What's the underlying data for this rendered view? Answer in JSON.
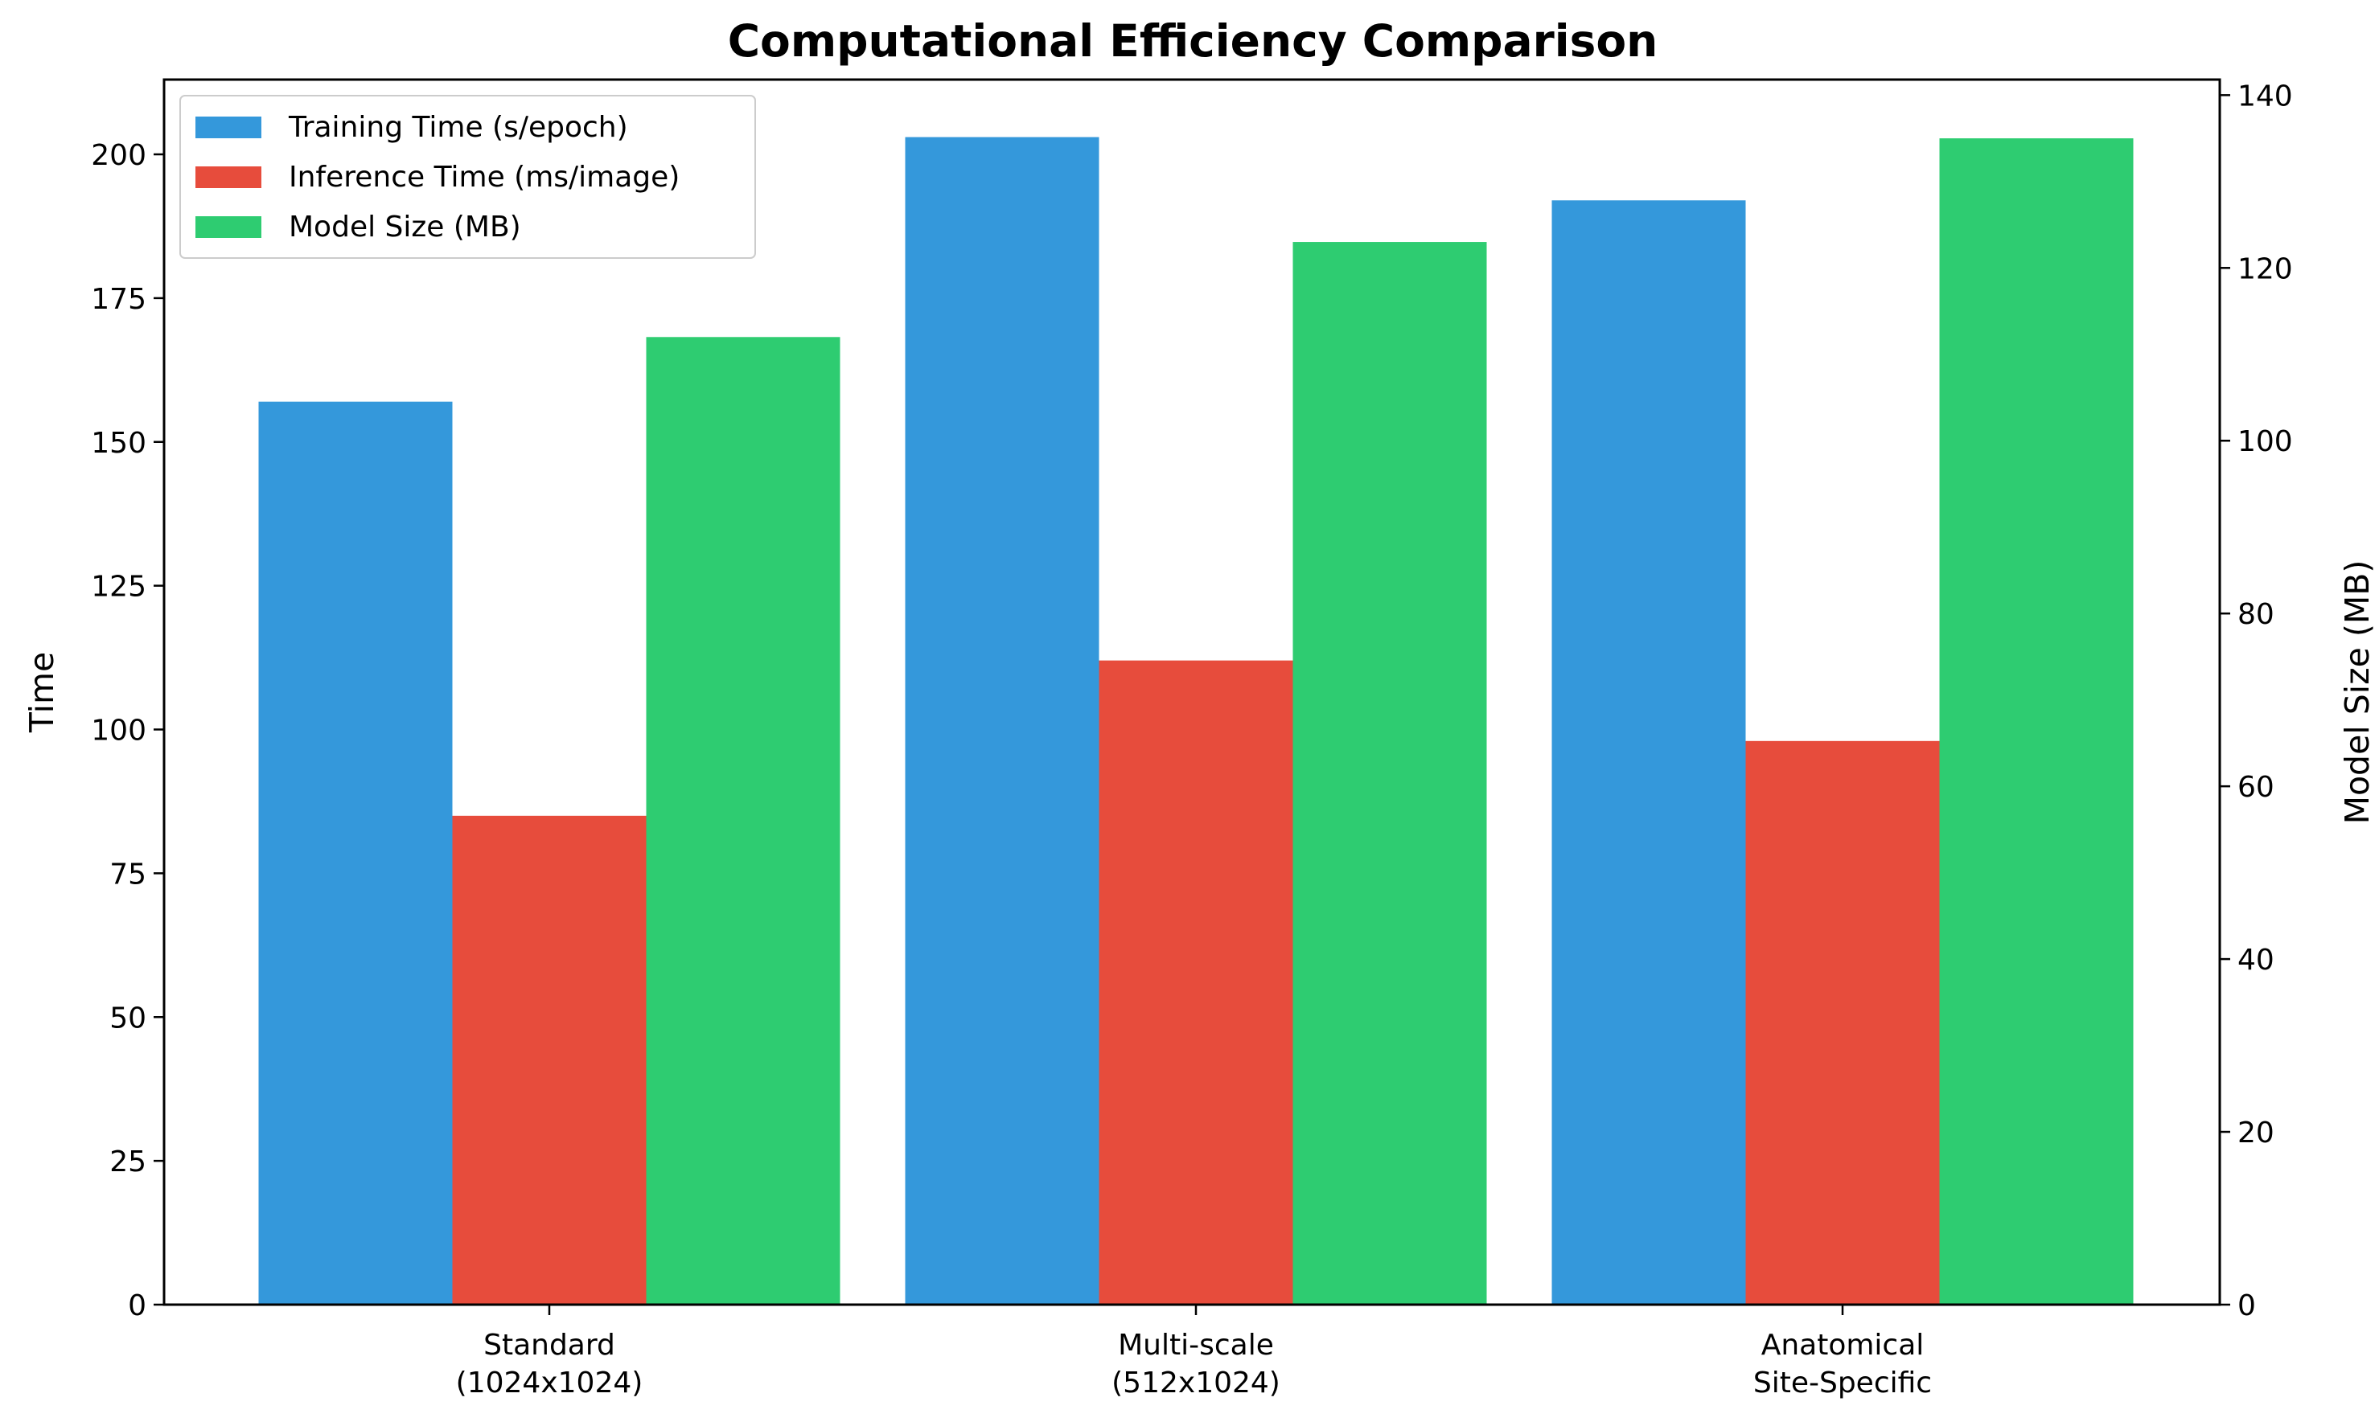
{
  "chart_data": {
    "type": "bar",
    "title": "Computational Efficiency Comparison",
    "categories": [
      [
        "Standard",
        "(1024x1024)"
      ],
      [
        "Multi-scale",
        "(512x1024)"
      ],
      [
        "Anatomical",
        "Site-Specific"
      ]
    ],
    "series": [
      {
        "name": "Training Time (s/epoch)",
        "axis": "left",
        "color": "#3498db",
        "values": [
          157,
          203,
          192
        ]
      },
      {
        "name": "Inference Time (ms/image)",
        "axis": "left",
        "color": "#e74c3c",
        "values": [
          85,
          112,
          98
        ]
      },
      {
        "name": "Model Size (MB)",
        "axis": "right",
        "color": "#2ecc71",
        "values": [
          112,
          123,
          135
        ]
      }
    ],
    "ylabel": "Time",
    "ylabel_right": "Model Size (MB)",
    "ylim": [
      0,
      213
    ],
    "yticks": [
      0,
      25,
      50,
      75,
      100,
      125,
      150,
      175,
      200
    ],
    "ylim_right": [
      0,
      141.8
    ],
    "yticks_right": [
      0,
      20,
      40,
      60,
      80,
      100,
      120,
      140
    ],
    "grid": false,
    "legend_position": "upper-left"
  }
}
